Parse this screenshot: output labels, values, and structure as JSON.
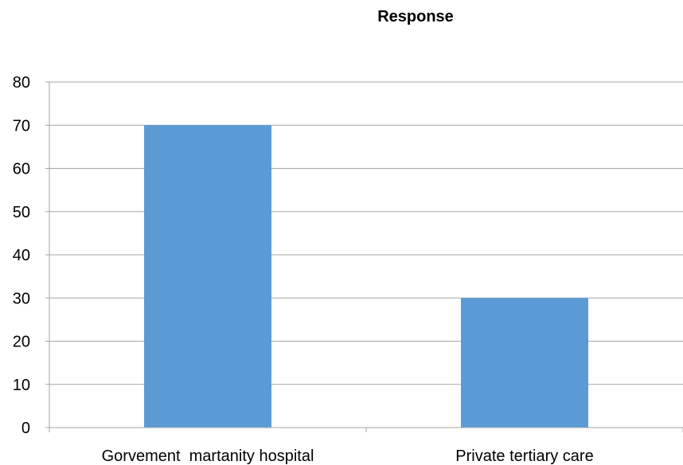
{
  "chart_data": {
    "type": "bar",
    "title": "Response",
    "categories": [
      "Gorvement  martanity hospital",
      "Private tertiary care"
    ],
    "values": [
      70,
      30
    ],
    "ylim": [
      0,
      80
    ],
    "yticks": [
      0,
      10,
      20,
      30,
      40,
      50,
      60,
      70,
      80
    ],
    "grid": true,
    "legend": "none",
    "bar_color": "#5b9bd5",
    "xlabel": "",
    "ylabel": ""
  }
}
